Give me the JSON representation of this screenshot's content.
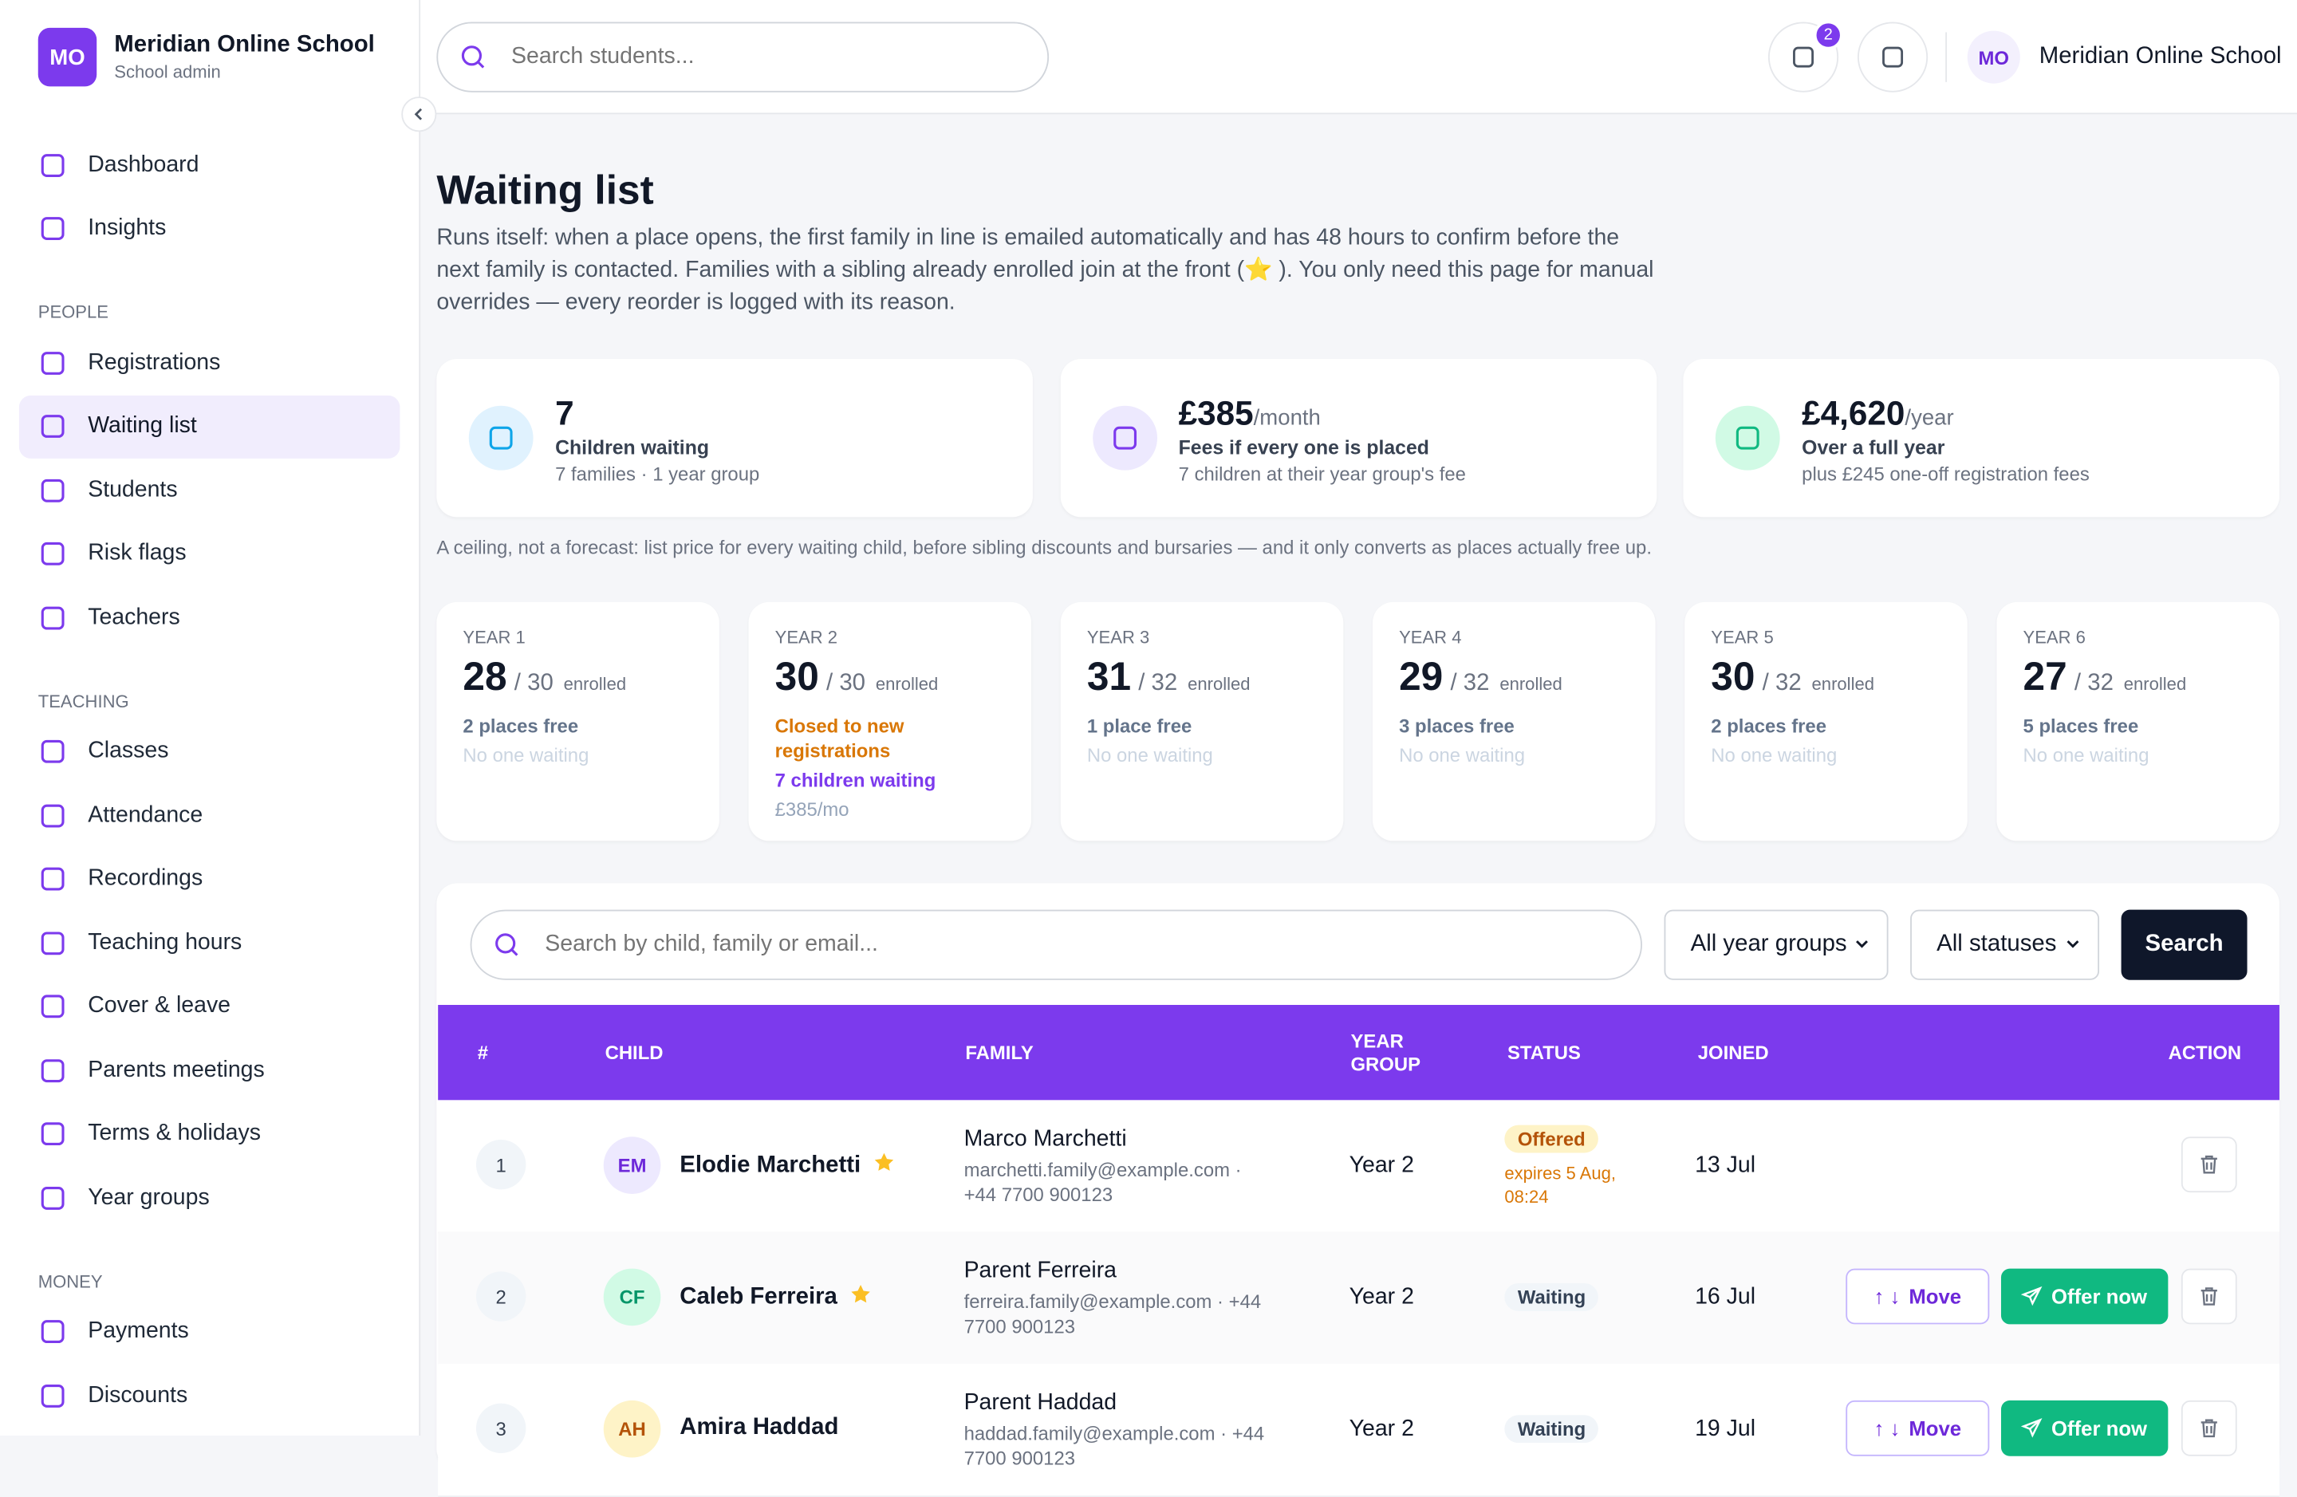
{
  "header": {
    "brand": {
      "initials": "MO",
      "name": "Meridian Online School",
      "role": "School admin"
    },
    "search_placeholder": "Search students...",
    "notifications": "2",
    "user": {
      "initials": "MO",
      "name": "Meridian Online School"
    }
  },
  "sidebar": {
    "items": [
      "Dashboard",
      "Insights"
    ],
    "active": "Waiting list",
    "sections": [
      {
        "title": "PEOPLE",
        "items": [
          "Registrations",
          "Waiting list",
          "Students",
          "Risk flags",
          "Teachers"
        ]
      },
      {
        "title": "TEACHING",
        "items": [
          "Classes",
          "Attendance",
          "Recordings",
          "Teaching hours",
          "Cover & leave",
          "Parents meetings",
          "Terms & holidays",
          "Year groups"
        ]
      },
      {
        "title": "MONEY",
        "items": [
          "Payments",
          "Discounts"
        ]
      }
    ]
  },
  "page": {
    "title": "Waiting list",
    "description": "Runs itself: when a place opens, the first family in line is emailed automatically and has 48 hours to confirm before the next family is contacted. Families with a sibling already enrolled join at the front (⭐ ). You only need this page for manual overrides — every reorder is logged with its reason.",
    "stats": [
      {
        "value": "7",
        "unit": "",
        "label": "Children waiting",
        "sub": "7 families · 1 year group"
      },
      {
        "value": "£385",
        "unit": "/month",
        "label": "Fees if every one is placed",
        "sub": "7 children at their year group's fee"
      },
      {
        "value": "£4,620",
        "unit": "/year",
        "label": "Over a full year",
        "sub": "plus £245 one-off registration fees"
      }
    ],
    "note": "A ceiling, not a forecast: list price for every waiting child, before sibling discounts and bursaries — and it only converts as places actually free up.",
    "year_groups": [
      {
        "label": "YEAR 1",
        "enrolled": "28",
        "capacity": "/ 30",
        "word": "enrolled",
        "lines": [
          {
            "text": "2 places free",
            "color": "#64748b"
          },
          {
            "text": "No one waiting",
            "color": "#cbd5e1"
          }
        ]
      },
      {
        "label": "YEAR 2",
        "enrolled": "30",
        "capacity": "/ 30",
        "word": "enrolled",
        "lines": [
          {
            "text": "Closed to new registrations",
            "color": "#d97706"
          },
          {
            "text": "7 children waiting",
            "color": "#7c3aed"
          },
          {
            "text": "£385/mo",
            "color": "#94a3b8"
          }
        ]
      },
      {
        "label": "YEAR 3",
        "enrolled": "31",
        "capacity": "/ 32",
        "word": "enrolled",
        "lines": [
          {
            "text": "1 place free",
            "color": "#64748b"
          },
          {
            "text": "No one waiting",
            "color": "#cbd5e1"
          }
        ]
      },
      {
        "label": "YEAR 4",
        "enrolled": "29",
        "capacity": "/ 32",
        "word": "enrolled",
        "lines": [
          {
            "text": "3 places free",
            "color": "#64748b"
          },
          {
            "text": "No one waiting",
            "color": "#cbd5e1"
          }
        ]
      },
      {
        "label": "YEAR 5",
        "enrolled": "30",
        "capacity": "/ 32",
        "word": "enrolled",
        "lines": [
          {
            "text": "2 places free",
            "color": "#64748b"
          },
          {
            "text": "No one waiting",
            "color": "#cbd5e1"
          }
        ]
      },
      {
        "label": "YEAR 6",
        "enrolled": "27",
        "capacity": "/ 32",
        "word": "enrolled",
        "lines": [
          {
            "text": "5 places free",
            "color": "#64748b"
          },
          {
            "text": "No one waiting",
            "color": "#cbd5e1"
          }
        ]
      }
    ],
    "filters": {
      "search_placeholder": "Search by child, family or email...",
      "year": "All year groups",
      "status": "All statuses",
      "button": "Search"
    },
    "table": {
      "columns": [
        "#",
        "CHILD",
        "FAMILY",
        "YEAR GROUP",
        "STATUS",
        "JOINED",
        "ACTION"
      ],
      "rows": [
        {
          "position": "1",
          "initials": "EM",
          "child": "Elodie Marchetti",
          "sibling": true,
          "family": "Marco Marchetti",
          "contact": "marchetti.family@example.com · +44 7700 900123",
          "year": "Year 2",
          "status": "Offered",
          "status_note": "expires 5 Aug, 08:24",
          "joined": "13 Jul",
          "actions": []
        },
        {
          "position": "2",
          "initials": "CF",
          "child": "Caleb Ferreira",
          "sibling": true,
          "family": "Parent Ferreira",
          "contact": "ferreira.family@example.com · +44 7700 900123",
          "year": "Year 2",
          "status": "Waiting",
          "status_note": "",
          "joined": "16 Jul",
          "actions": [
            "Move",
            "Offer now"
          ]
        },
        {
          "position": "3",
          "initials": "AH",
          "child": "Amira Haddad",
          "sibling": false,
          "family": "Parent Haddad",
          "contact": "haddad.family@example.com · +44 7700 900123",
          "year": "Year 2",
          "status": "Waiting",
          "status_note": "",
          "joined": "19 Jul",
          "actions": [
            "Move",
            "Offer now"
          ]
        }
      ]
    }
  }
}
